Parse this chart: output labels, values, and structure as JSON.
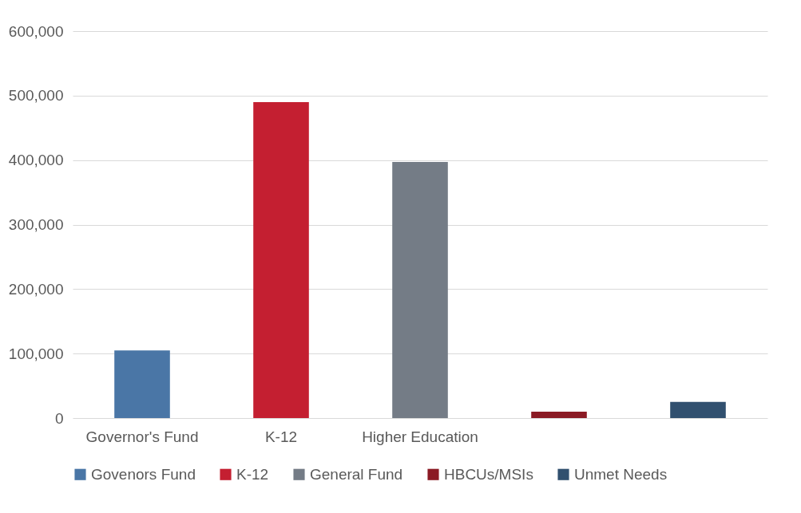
{
  "chart_data": {
    "type": "bar",
    "categories": [
      "Governor's Fund",
      "K-12",
      "Higher Education",
      null,
      null
    ],
    "series": [
      {
        "name": "Govenors Fund",
        "color": "#4a76a6",
        "values": [
          105000,
          null,
          null,
          null,
          null
        ]
      },
      {
        "name": "K-12",
        "color": "#c41f31",
        "values": [
          null,
          490000,
          null,
          null,
          null
        ]
      },
      {
        "name": "General Fund",
        "color": "#747c86",
        "values": [
          null,
          null,
          397000,
          null,
          null
        ]
      },
      {
        "name": "HBCUs/MSIs",
        "color": "#8b1a24",
        "values": [
          null,
          null,
          null,
          10000,
          null
        ]
      },
      {
        "name": "Unmet Needs",
        "color": "#31506f",
        "values": [
          null,
          null,
          null,
          null,
          25000
        ]
      }
    ],
    "ylim": [
      0,
      600000
    ],
    "yticks": [
      0,
      {
        "value": 100000,
        "label": "100,000"
      },
      {
        "value": 200000,
        "label": "200,000"
      },
      {
        "value": 300000,
        "label": "300,000"
      },
      {
        "value": 400000,
        "label": "400,000"
      },
      {
        "value": 500000,
        "label": "500,000"
      },
      {
        "value": 600000,
        "label": "600,000"
      }
    ],
    "grid": "y",
    "legend": "bottom"
  }
}
